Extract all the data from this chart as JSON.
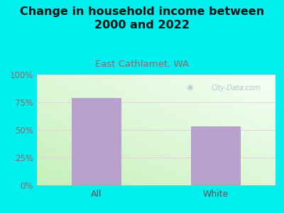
{
  "title": "Change in household income between\n2000 and 2022",
  "subtitle": "East Cathlamet, WA",
  "categories": [
    "All",
    "White"
  ],
  "values": [
    79,
    53
  ],
  "bar_color": "#b8a0cc",
  "background_outer": "#00efef",
  "ylim": [
    0,
    100
  ],
  "yticks": [
    0,
    25,
    50,
    75,
    100
  ],
  "ytick_labels": [
    "0%",
    "25%",
    "50%",
    "75%",
    "100%"
  ],
  "title_fontsize": 11.5,
  "subtitle_fontsize": 9.5,
  "tick_fontsize": 8.5,
  "watermark": "City-Data.com",
  "title_color": "#111111",
  "subtitle_color": "#996666",
  "tick_label_color": "#996666",
  "x_tick_color": "#555555",
  "watermark_color": "#aabbcc",
  "plot_gradient_bottom_left": "#c8eec0",
  "plot_gradient_top_right": "#f4fdf4"
}
